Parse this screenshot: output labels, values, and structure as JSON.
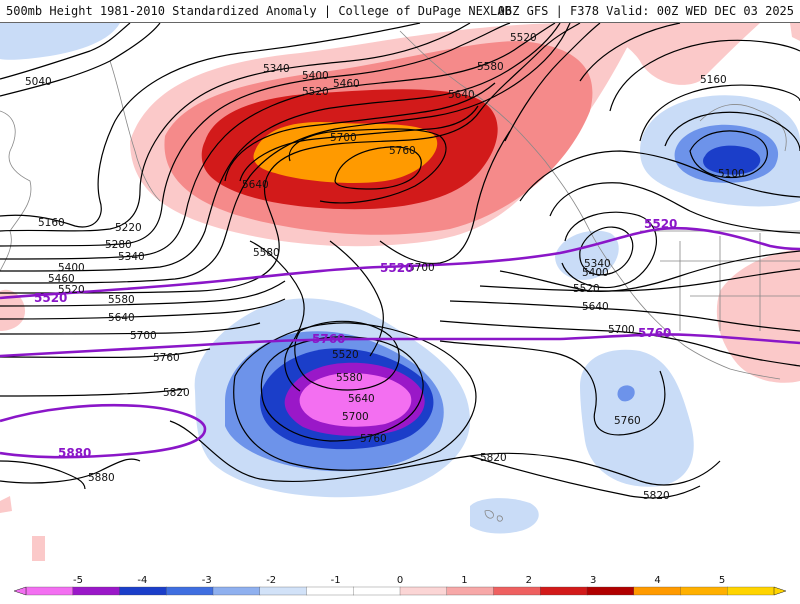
{
  "header": {
    "title_left": "500mb Height 1981-2010 Standardized Anomaly | College of DuPage NEXLAB",
    "title_right": "06Z GFS | F378 Valid: 00Z WED DEC 03 2025"
  },
  "colors": {
    "anom_pos_1": "#fbc9c9",
    "anom_pos_2": "#f58a8a",
    "anom_pos_3": "#d21a1a",
    "anom_pos_4": "#ff9a00",
    "anom_neg_1": "#c9dcf7",
    "anom_neg_2": "#6d93ea",
    "anom_neg_3": "#1b3ec9",
    "anom_neg_4": "#9a18c8",
    "anom_neg_5": "#f36ff1",
    "height_contour": "#000000",
    "thick_contour": "#8a16c8"
  },
  "contour_labels": {
    "l5040": "5040",
    "l5340_top": "5340",
    "l5400_top": "5400",
    "l5460_top": "5460",
    "l5520_top": "5520",
    "l5520_ne": "5520",
    "l5580_ne": "5580",
    "l5640_ne": "5640",
    "l5700_ridge": "5700",
    "l5760_ridge": "5760",
    "l5640_ridge": "5640",
    "l5160_w": "5160",
    "l5220": "5220",
    "l5280": "5280",
    "l5340_w": "5340",
    "l5400_w": "5400",
    "l5460_w": "5460",
    "l5520_w": "5520",
    "l5580_w": "5580",
    "l5640_w": "5640",
    "l5700_w": "5700",
    "l5760_w": "5760",
    "l5820_w": "5820",
    "l5880_w": "5880",
    "l5580_mid": "5580",
    "l5700_mid": "5700",
    "l5520_low": "5520",
    "l5580_low": "5580",
    "l5640_low": "5640",
    "l5700_low": "5700",
    "l5760_low": "5760",
    "l5820_s": "5820",
    "l5820_se": "5820",
    "l5760_se": "5760",
    "l5160_e": "5160",
    "l5100_e": "5100",
    "l5340_e": "5340",
    "l5400_e": "5400",
    "l5520_e": "5520",
    "l5640_e": "5640",
    "l5700_e": "5700",
    "th5520_w": "5520",
    "th5520_mid": "5520",
    "th5520_e": "5520",
    "th5760_w": "5760",
    "th5760_e": "5760",
    "th5880": "5880"
  },
  "colorbar": {
    "ticks": [
      "-5",
      "-4",
      "-3",
      "-2",
      "-1",
      "0",
      "1",
      "2",
      "3",
      "4",
      "5"
    ],
    "bins": [
      "#f36ff1",
      "#9a18c8",
      "#1b3ec9",
      "#3f6ee0",
      "#8fb0ef",
      "#d2e2f8",
      "#ffffff",
      "#ffffff",
      "#fbd5d5",
      "#f7a8a8",
      "#ee6060",
      "#d21a1a",
      "#b00000",
      "#ff9a00",
      "#ffb000",
      "#ffd400"
    ]
  }
}
